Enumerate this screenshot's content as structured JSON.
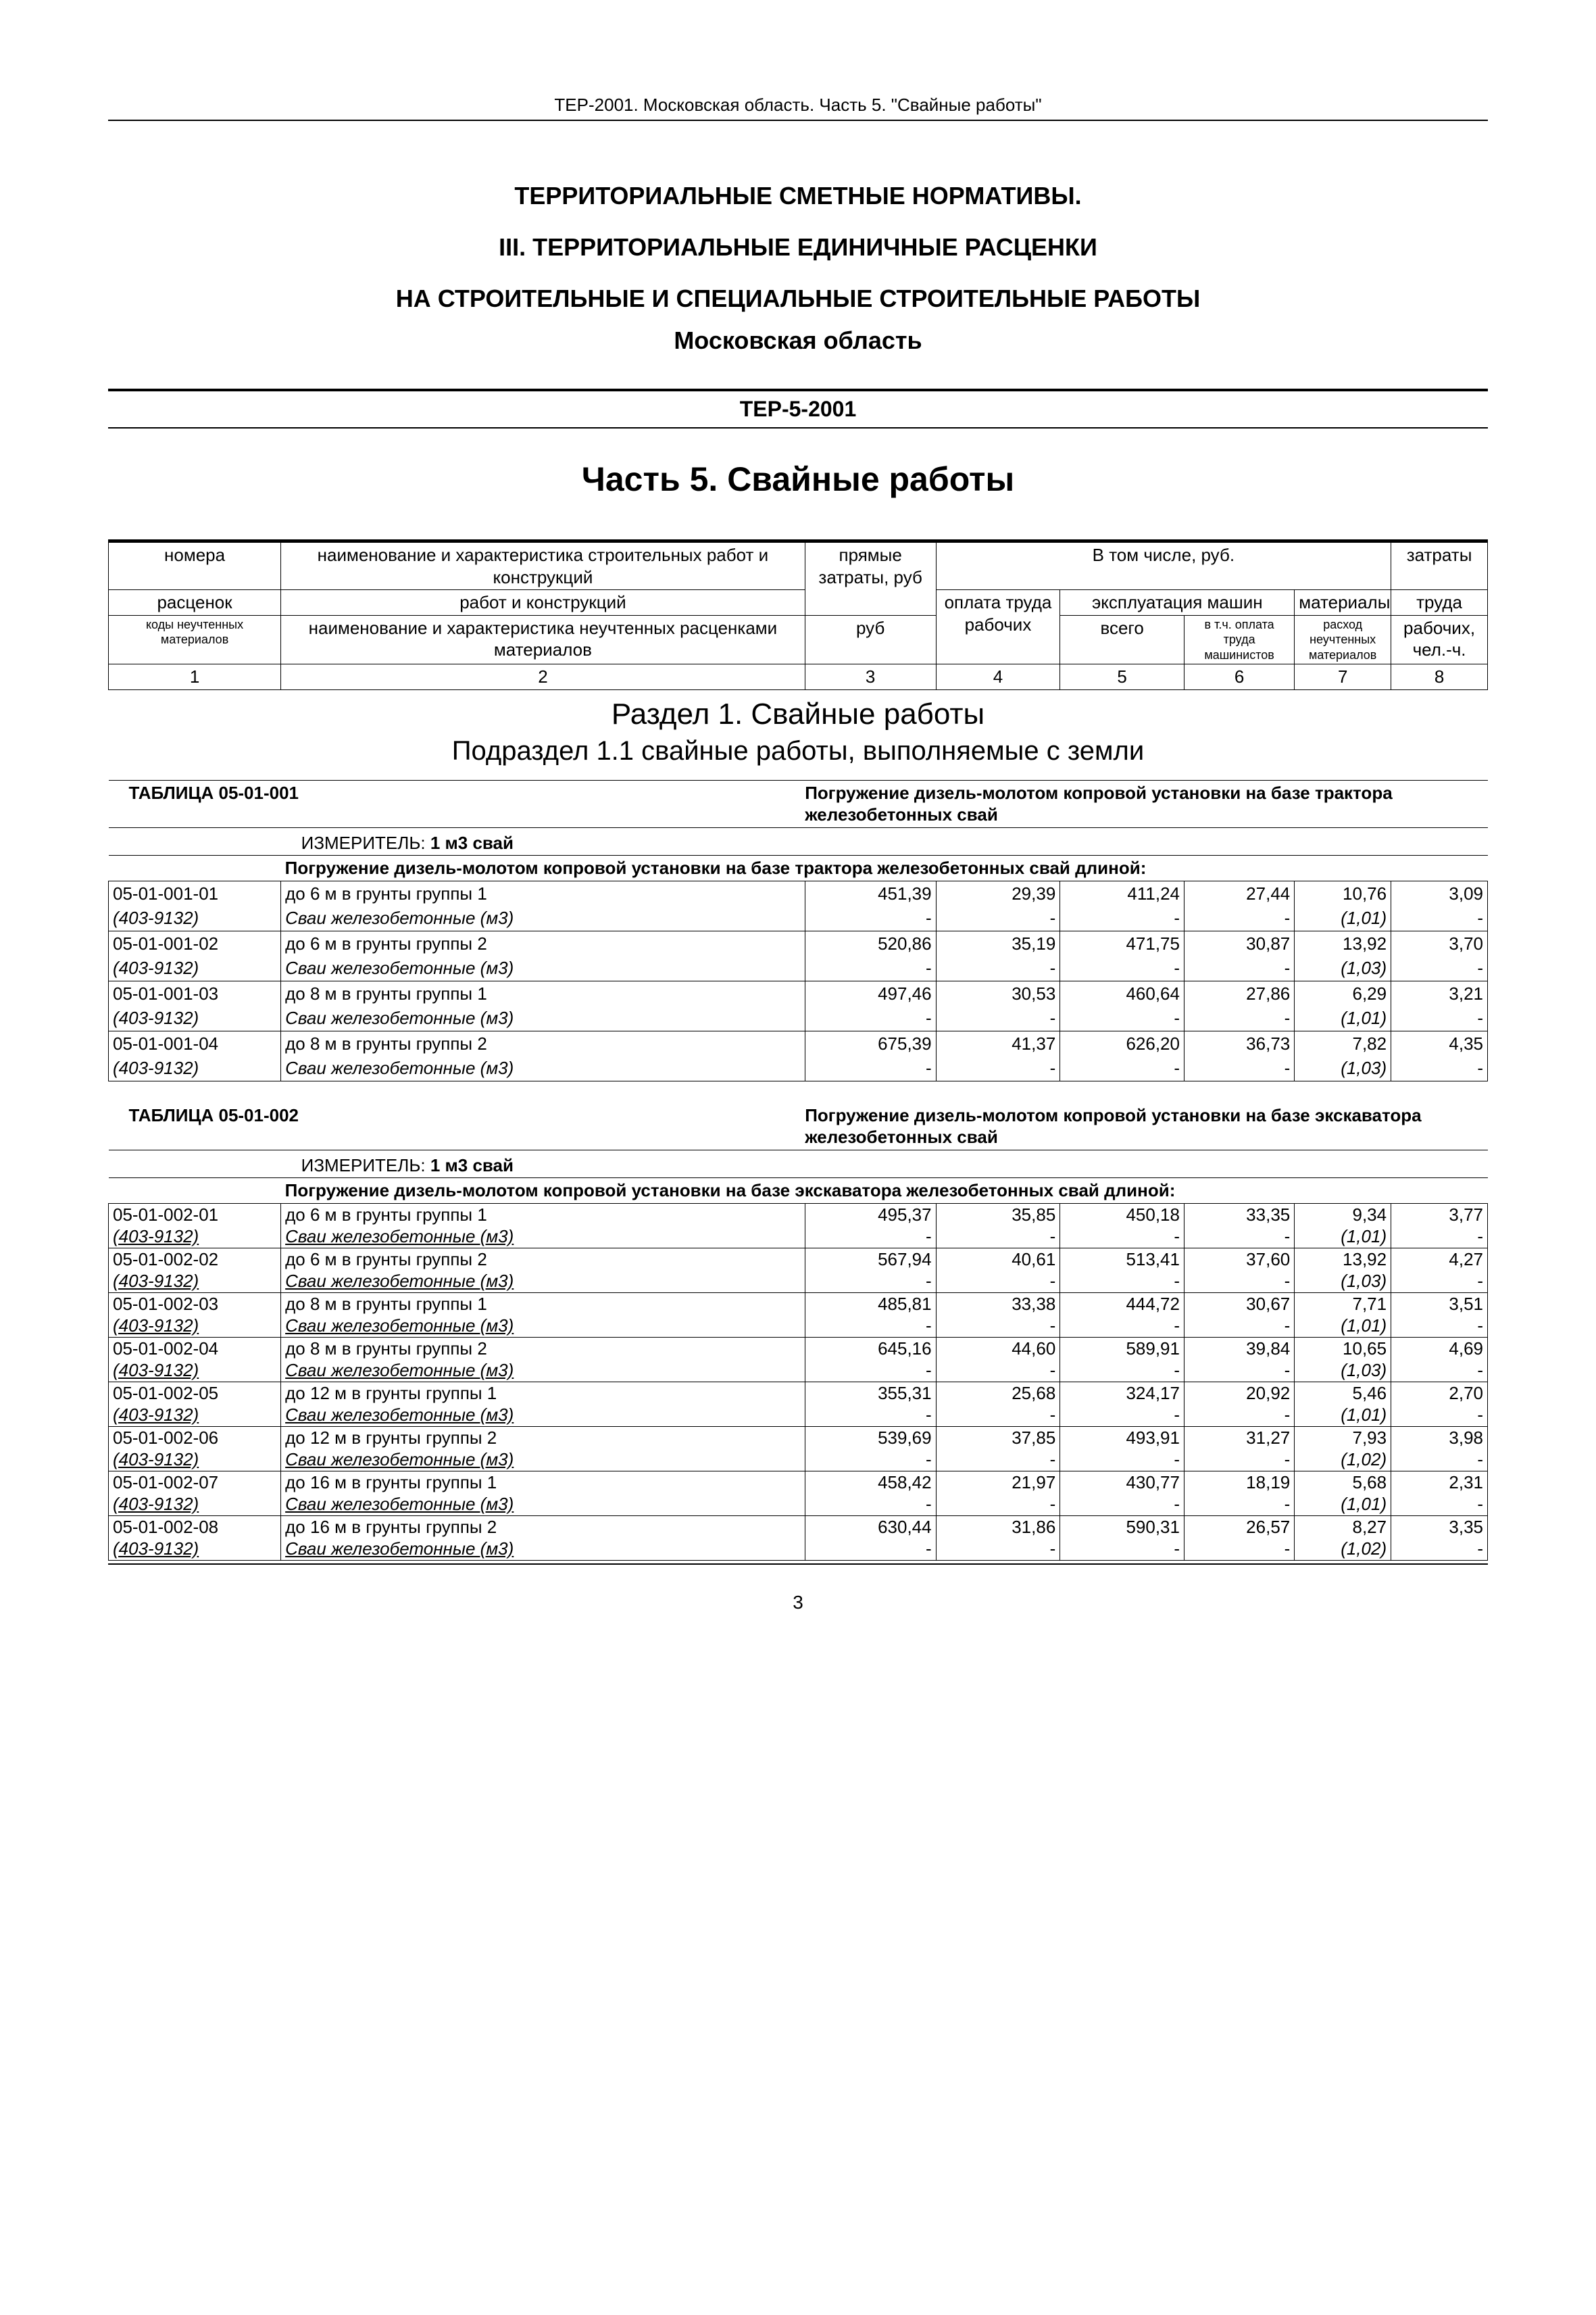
{
  "doc_header": "ТЕР-2001. Московская область. Часть 5. \"Свайные работы\"",
  "titles": {
    "l1": "ТЕРРИТОРИАЛЬНЫЕ СМЕТНЫЕ НОРМАТИВЫ.",
    "l2": "III. ТЕРРИТОРИАЛЬНЫЕ ЕДИНИЧНЫЕ РАСЦЕНКИ",
    "l3": "НА СТРОИТЕЛЬНЫЕ И СПЕЦИАЛЬНЫЕ СТРОИТЕЛЬНЫЕ РАБОТЫ",
    "l4": "Московская область",
    "doc_id": "ТЕР-5-2001",
    "part": "Часть 5. Свайные работы"
  },
  "head_labels": {
    "numbers": "номера",
    "rates": "расценок",
    "codes": "коды неучтенных материалов",
    "name_works": "наименование и характеристика строительных работ и конструкций",
    "name_unacc": "наименование и характеристика неучтенных расценками материалов",
    "direct": "прямые затраты, руб",
    "incl": "В том числе, руб.",
    "labor_pay": "оплата труда рабочих",
    "machines": "эксплуатация машин",
    "total": "всего",
    "mach_labor": "в т.ч. оплата труда машинистов",
    "materials": "материалы",
    "mat_unacc": "расход неучтенных материалов",
    "labor_cost": "затраты труда рабочих, чел.-ч.",
    "c1": "1",
    "c2": "2",
    "c3": "3",
    "c4": "4",
    "c5": "5",
    "c6": "6",
    "c7": "7",
    "c8": "8"
  },
  "section": "Раздел 1. Свайные работы",
  "subsection": "Подраздел 1.1 свайные работы, выполняемые с земли",
  "table1": {
    "code_label": "ТАБЛИЦА 05-01-001",
    "title": "Погружение дизель-молотом копровой установки на базе трактора железобетонных свай",
    "measure_label": "ИЗМЕРИТЕЛЬ:",
    "measure": "1 м3 свай",
    "desc": "Погружение дизель-молотом копровой установки на базе трактора железобетонных свай длиной:",
    "mat_ref": "(403-9132)",
    "mat_name": "Сваи железобетонные (м3)",
    "rows": [
      {
        "code": "05-01-001-01",
        "name": "до 6 м в грунты группы 1",
        "v": [
          "451,39",
          "29,39",
          "411,24",
          "27,44",
          "10,76",
          "3,09"
        ],
        "mat": "(1,01)"
      },
      {
        "code": "05-01-001-02",
        "name": "до 6 м в грунты группы 2",
        "v": [
          "520,86",
          "35,19",
          "471,75",
          "30,87",
          "13,92",
          "3,70"
        ],
        "mat": "(1,03)"
      },
      {
        "code": "05-01-001-03",
        "name": "до 8 м в грунты группы 1",
        "v": [
          "497,46",
          "30,53",
          "460,64",
          "27,86",
          "6,29",
          "3,21"
        ],
        "mat": "(1,01)"
      },
      {
        "code": "05-01-001-04",
        "name": "до 8 м в грунты группы 2",
        "v": [
          "675,39",
          "41,37",
          "626,20",
          "36,73",
          "7,82",
          "4,35"
        ],
        "mat": "(1,03)"
      }
    ]
  },
  "table2": {
    "code_label": "ТАБЛИЦА 05-01-002",
    "title": "Погружение дизель-молотом копровой установки на базе экскаватора железобетонных свай",
    "measure_label": "ИЗМЕРИТЕЛЬ:",
    "measure": "1 м3 свай",
    "desc": "Погружение дизель-молотом копровой установки на базе экскаватора железобетонных свай длиной:",
    "mat_ref": "(403-9132)",
    "mat_name": "Сваи железобетонные (м3)",
    "rows": [
      {
        "code": "05-01-002-01",
        "name": "до 6 м в грунты группы 1",
        "v": [
          "495,37",
          "35,85",
          "450,18",
          "33,35",
          "9,34",
          "3,77"
        ],
        "mat": "(1,01)"
      },
      {
        "code": "05-01-002-02",
        "name": "до 6 м в грунты группы 2",
        "v": [
          "567,94",
          "40,61",
          "513,41",
          "37,60",
          "13,92",
          "4,27"
        ],
        "mat": "(1,03)"
      },
      {
        "code": "05-01-002-03",
        "name": "до 8 м в грунты группы 1",
        "v": [
          "485,81",
          "33,38",
          "444,72",
          "30,67",
          "7,71",
          "3,51"
        ],
        "mat": "(1,01)"
      },
      {
        "code": "05-01-002-04",
        "name": "до 8 м в грунты группы 2",
        "v": [
          "645,16",
          "44,60",
          "589,91",
          "39,84",
          "10,65",
          "4,69"
        ],
        "mat": "(1,03)"
      },
      {
        "code": "05-01-002-05",
        "name": "до 12 м в грунты группы 1",
        "v": [
          "355,31",
          "25,68",
          "324,17",
          "20,92",
          "5,46",
          "2,70"
        ],
        "mat": "(1,01)"
      },
      {
        "code": "05-01-002-06",
        "name": "до 12 м в грунты группы 2",
        "v": [
          "539,69",
          "37,85",
          "493,91",
          "31,27",
          "7,93",
          "3,98"
        ],
        "mat": "(1,02)"
      },
      {
        "code": "05-01-002-07",
        "name": "до 16 м в грунты группы 1",
        "v": [
          "458,42",
          "21,97",
          "430,77",
          "18,19",
          "5,68",
          "2,31"
        ],
        "mat": "(1,01)"
      },
      {
        "code": "05-01-002-08",
        "name": "до 16 м в грунты группы 2",
        "v": [
          "630,44",
          "31,86",
          "590,31",
          "26,57",
          "8,27",
          "3,35"
        ],
        "mat": "(1,02)"
      }
    ]
  },
  "page_number": "3",
  "dash": "-"
}
